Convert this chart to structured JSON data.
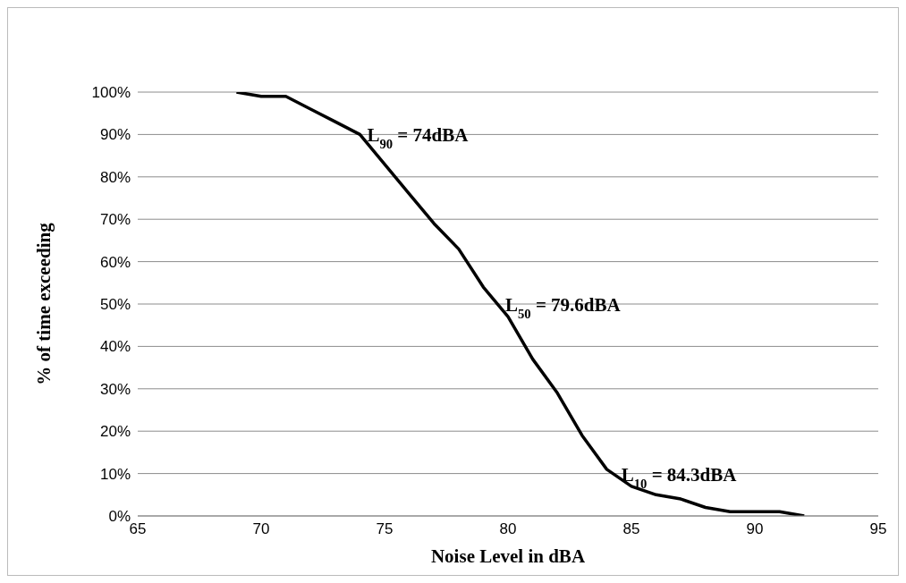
{
  "chart_data": {
    "type": "line",
    "xlabel": "Noise Level in dBA",
    "ylabel": "% of time exceeding",
    "x": [
      69,
      70,
      71,
      72,
      73,
      74,
      75,
      76,
      77,
      78,
      79,
      80,
      81,
      82,
      83,
      84,
      85,
      86,
      87,
      88,
      89,
      90,
      91,
      92
    ],
    "series": [
      {
        "color": "#000000",
        "values": [
          100,
          99,
          99,
          96,
          93,
          90,
          83,
          76,
          69,
          63,
          54,
          47,
          37,
          29,
          19,
          11,
          7,
          5,
          4,
          2,
          1,
          1,
          1,
          0
        ]
      }
    ],
    "xlim": [
      65,
      95
    ],
    "xticks": [
      65,
      70,
      75,
      80,
      85,
      90,
      95
    ],
    "ylim": [
      0,
      100
    ],
    "yticks": [
      {
        "value": 0,
        "label": "0%"
      },
      {
        "value": 10,
        "label": "10%"
      },
      {
        "value": 20,
        "label": "20%"
      },
      {
        "value": 30,
        "label": "30%"
      },
      {
        "value": 40,
        "label": "40%"
      },
      {
        "value": 50,
        "label": "50%"
      },
      {
        "value": 60,
        "label": "60%"
      },
      {
        "value": 70,
        "label": "70%"
      },
      {
        "value": 80,
        "label": "80%"
      },
      {
        "value": 90,
        "label": "90%"
      },
      {
        "value": 100,
        "label": "100%"
      }
    ],
    "grid": "y",
    "marker": "none",
    "line_style": "solid",
    "legend": false,
    "annotations": [
      {
        "text": "L$_{90}$ = 74dBA",
        "x": 74,
        "y": 90
      },
      {
        "text": "L$_{50}$ = 79.6dBA",
        "x": 79.6,
        "y": 50
      },
      {
        "text": "L$_{10}$ = 84.3dBA",
        "x": 84.3,
        "y": 10
      }
    ]
  }
}
